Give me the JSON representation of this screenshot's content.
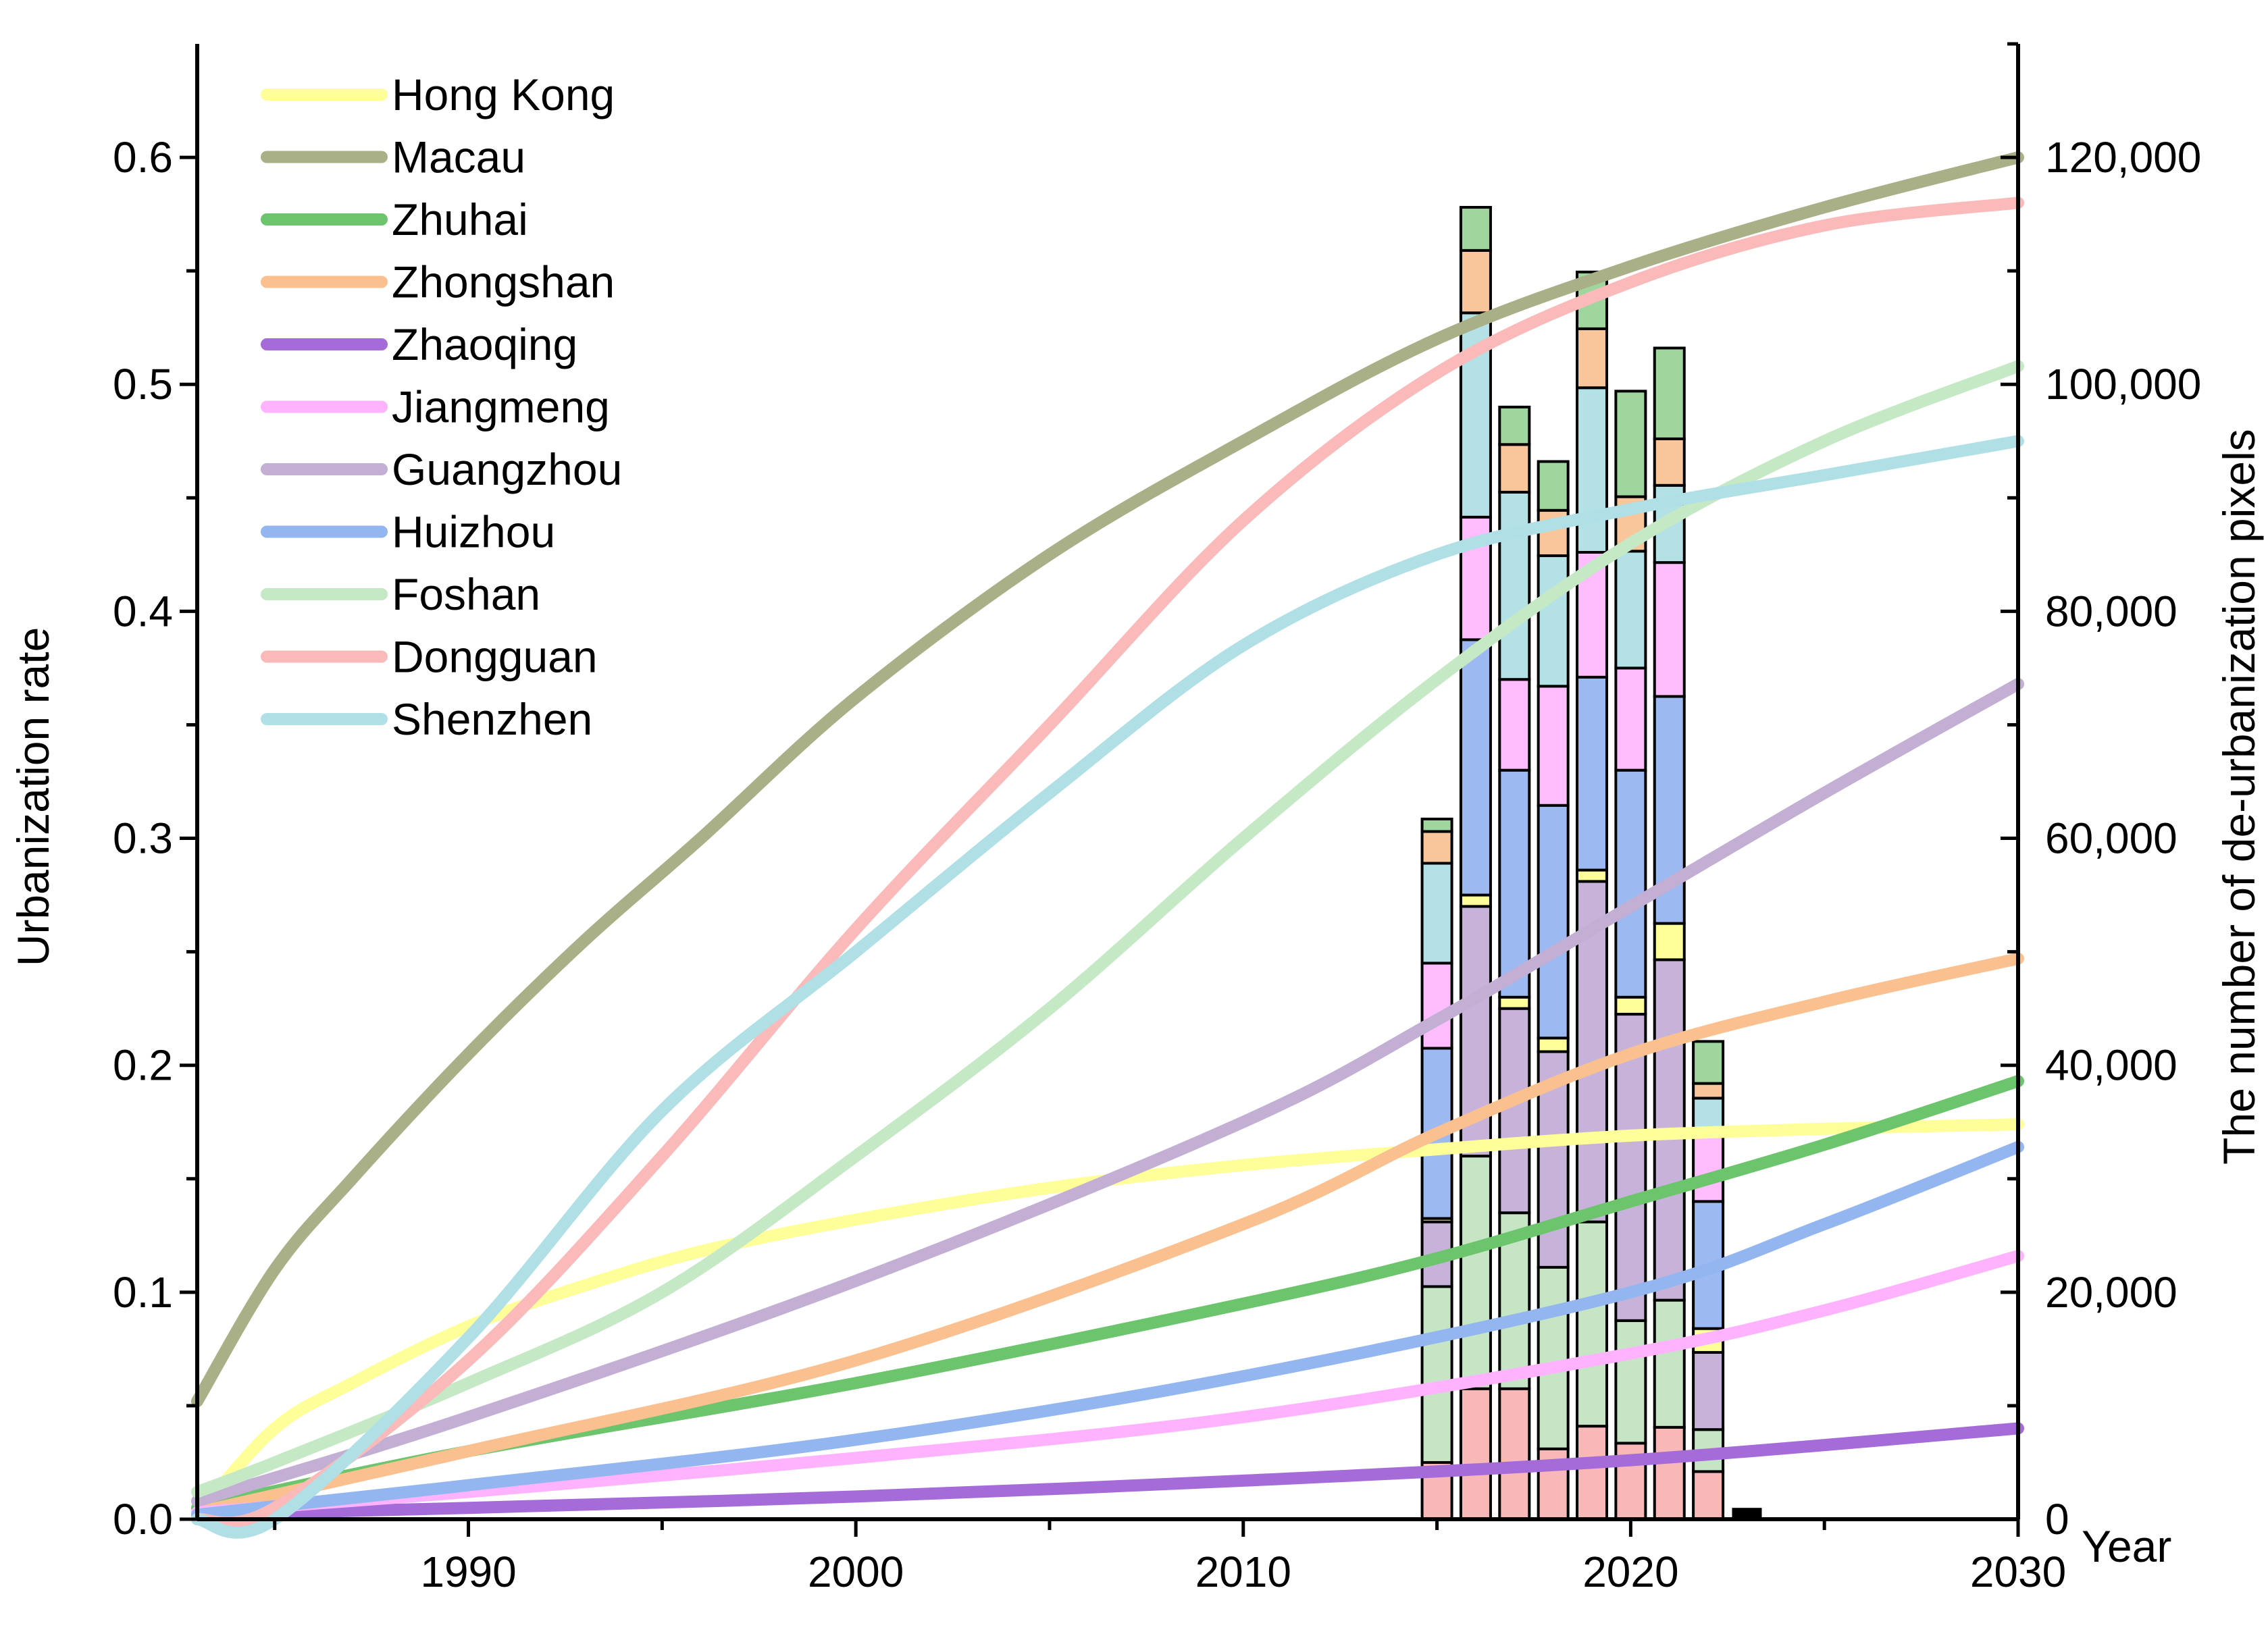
{
  "chart_data": {
    "type": "line+stacked-bar",
    "title": "",
    "xlabel": "Year",
    "ylabel_left": "Urbanization rate",
    "ylabel_right": "The number of de-urbanization pixels",
    "xlim": [
      1983,
      2030
    ],
    "ylim_left": [
      0,
      0.65
    ],
    "ylim_right": [
      0,
      130000
    ],
    "x_ticks": [
      1990,
      2000,
      2010,
      2020,
      2030
    ],
    "x_tick_labels": [
      "1990",
      "2000",
      "2010",
      "2020",
      "2030"
    ],
    "y_left_ticks": [
      0.0,
      0.1,
      0.2,
      0.3,
      0.4,
      0.5,
      0.6
    ],
    "y_left_tick_labels": [
      "0.0",
      "0.1",
      "0.2",
      "0.3",
      "0.4",
      "0.5",
      "0.6"
    ],
    "y_right_ticks": [
      0,
      20000,
      40000,
      60000,
      80000,
      100000,
      120000
    ],
    "y_right_tick_labels": [
      "0",
      "20,000",
      "40,000",
      "60,000",
      "80,000",
      "100,000",
      "120,000"
    ],
    "legend_position": "top-left",
    "grid": false,
    "line_series": [
      {
        "name": "Hong Kong",
        "color": "#FFFF99",
        "x": [
          1983,
          1985,
          1987,
          1990,
          1993,
          1996,
          2000,
          2005,
          2010,
          2015,
          2020,
          2025,
          2030
        ],
        "y": [
          0.002,
          0.04,
          0.06,
          0.085,
          0.103,
          0.118,
          0.132,
          0.146,
          0.156,
          0.163,
          0.169,
          0.172,
          0.174
        ]
      },
      {
        "name": "Macau",
        "color": "#A9AF86",
        "x": [
          1983,
          1985,
          1987,
          1990,
          1993,
          1996,
          2000,
          2005,
          2010,
          2015,
          2020,
          2025,
          2030
        ],
        "y": [
          0.052,
          0.11,
          0.15,
          0.205,
          0.255,
          0.3,
          0.362,
          0.425,
          0.475,
          0.52,
          0.552,
          0.578,
          0.6
        ]
      },
      {
        "name": "Zhuhai",
        "color": "#6CC46C",
        "x": [
          1983,
          1990,
          2000,
          2010,
          2015,
          2020,
          2025,
          2030
        ],
        "y": [
          0.005,
          0.03,
          0.06,
          0.095,
          0.115,
          0.14,
          0.165,
          0.193
        ]
      },
      {
        "name": "Zhongshan",
        "color": "#FAC08F",
        "x": [
          1983,
          1990,
          2000,
          2010,
          2015,
          2020,
          2025,
          2030
        ],
        "y": [
          0.003,
          0.03,
          0.07,
          0.13,
          0.17,
          0.205,
          0.228,
          0.247
        ]
      },
      {
        "name": "Zhaoqing",
        "color": "#A56BD9",
        "x": [
          1983,
          1990,
          2000,
          2010,
          2020,
          2030
        ],
        "y": [
          0.002,
          0.005,
          0.01,
          0.017,
          0.026,
          0.04
        ]
      },
      {
        "name": "Jiangmeng",
        "color": "#FFB3FF",
        "x": [
          1983,
          1990,
          2000,
          2010,
          2020,
          2025,
          2030
        ],
        "y": [
          0.003,
          0.012,
          0.027,
          0.045,
          0.073,
          0.092,
          0.116
        ]
      },
      {
        "name": "Guangzhou",
        "color": "#C3AED4",
        "x": [
          1983,
          1990,
          2000,
          2010,
          2015,
          2020,
          2025,
          2030
        ],
        "y": [
          0.008,
          0.045,
          0.105,
          0.175,
          0.22,
          0.27,
          0.32,
          0.368
        ]
      },
      {
        "name": "Huizhou",
        "color": "#93B5F0",
        "x": [
          1983,
          1990,
          2000,
          2010,
          2020,
          2025,
          2030
        ],
        "y": [
          0.002,
          0.015,
          0.035,
          0.063,
          0.1,
          0.13,
          0.164
        ]
      },
      {
        "name": "Foshan",
        "color": "#C5E8C5",
        "x": [
          1983,
          1985,
          1990,
          1995,
          2000,
          2005,
          2010,
          2015,
          2020,
          2025,
          2030
        ],
        "y": [
          0.012,
          0.025,
          0.06,
          0.1,
          0.16,
          0.225,
          0.3,
          0.37,
          0.43,
          0.475,
          0.508
        ]
      },
      {
        "name": "Dongguan",
        "color": "#FBBABA",
        "x": [
          1983,
          1985,
          1990,
          1995,
          2000,
          2005,
          2010,
          2015,
          2020,
          2025,
          2030
        ],
        "y": [
          0.0,
          0.005,
          0.07,
          0.16,
          0.26,
          0.35,
          0.44,
          0.505,
          0.545,
          0.57,
          0.58
        ]
      },
      {
        "name": "Shenzhen",
        "color": "#B0DFE6",
        "x": [
          1983,
          1985,
          1990,
          1995,
          2000,
          2005,
          2010,
          2015,
          2020,
          2025,
          2030
        ],
        "y": [
          0.0,
          0.0,
          0.08,
          0.18,
          0.25,
          0.32,
          0.385,
          0.425,
          0.445,
          0.46,
          0.475
        ]
      }
    ],
    "bar_years": [
      2015,
      2016,
      2017,
      2018,
      2019,
      2020,
      2021,
      2022
    ],
    "bar_stacks": [
      {
        "name": "Dongguan",
        "color": "#F9B8B8",
        "values": [
          5000,
          11500,
          11500,
          6200,
          8200,
          6700,
          8100,
          4200
        ]
      },
      {
        "name": "Foshan",
        "color": "#C5E5C5",
        "values": [
          15500,
          20500,
          15500,
          16000,
          18000,
          10800,
          11200,
          3700
        ]
      },
      {
        "name": "Guangzhou",
        "color": "#C7B3D9",
        "values": [
          5700,
          22000,
          18000,
          19000,
          30000,
          27000,
          30000,
          6800
        ]
      },
      {
        "name": "Hong Kong",
        "color": "#FFFF99",
        "values": [
          300,
          1000,
          1000,
          1200,
          1000,
          1500,
          3200,
          2100
        ]
      },
      {
        "name": "Huizhou",
        "color": "#9DB9F2",
        "values": [
          15000,
          22500,
          20000,
          20500,
          17000,
          20000,
          20000,
          11200
        ]
      },
      {
        "name": "Jiangmeng",
        "color": "#FDBDFD",
        "values": [
          7500,
          10800,
          8000,
          10500,
          11000,
          9000,
          11800,
          5800
        ]
      },
      {
        "name": "Shenzhen",
        "color": "#B3E1E6",
        "values": [
          8800,
          18000,
          16500,
          11500,
          14500,
          10300,
          6800,
          3300
        ]
      },
      {
        "name": "Zhongshan",
        "color": "#F9C59A",
        "values": [
          2800,
          5500,
          4200,
          4000,
          5200,
          4800,
          4100,
          1300
        ]
      },
      {
        "name": "Zhuhai",
        "color": "#9ED69E",
        "values": [
          1100,
          3800,
          3300,
          4300,
          5000,
          9300,
          8000,
          3700
        ]
      }
    ],
    "extra_bar": {
      "year": 2023,
      "value": 1000,
      "color": "#000000"
    }
  }
}
